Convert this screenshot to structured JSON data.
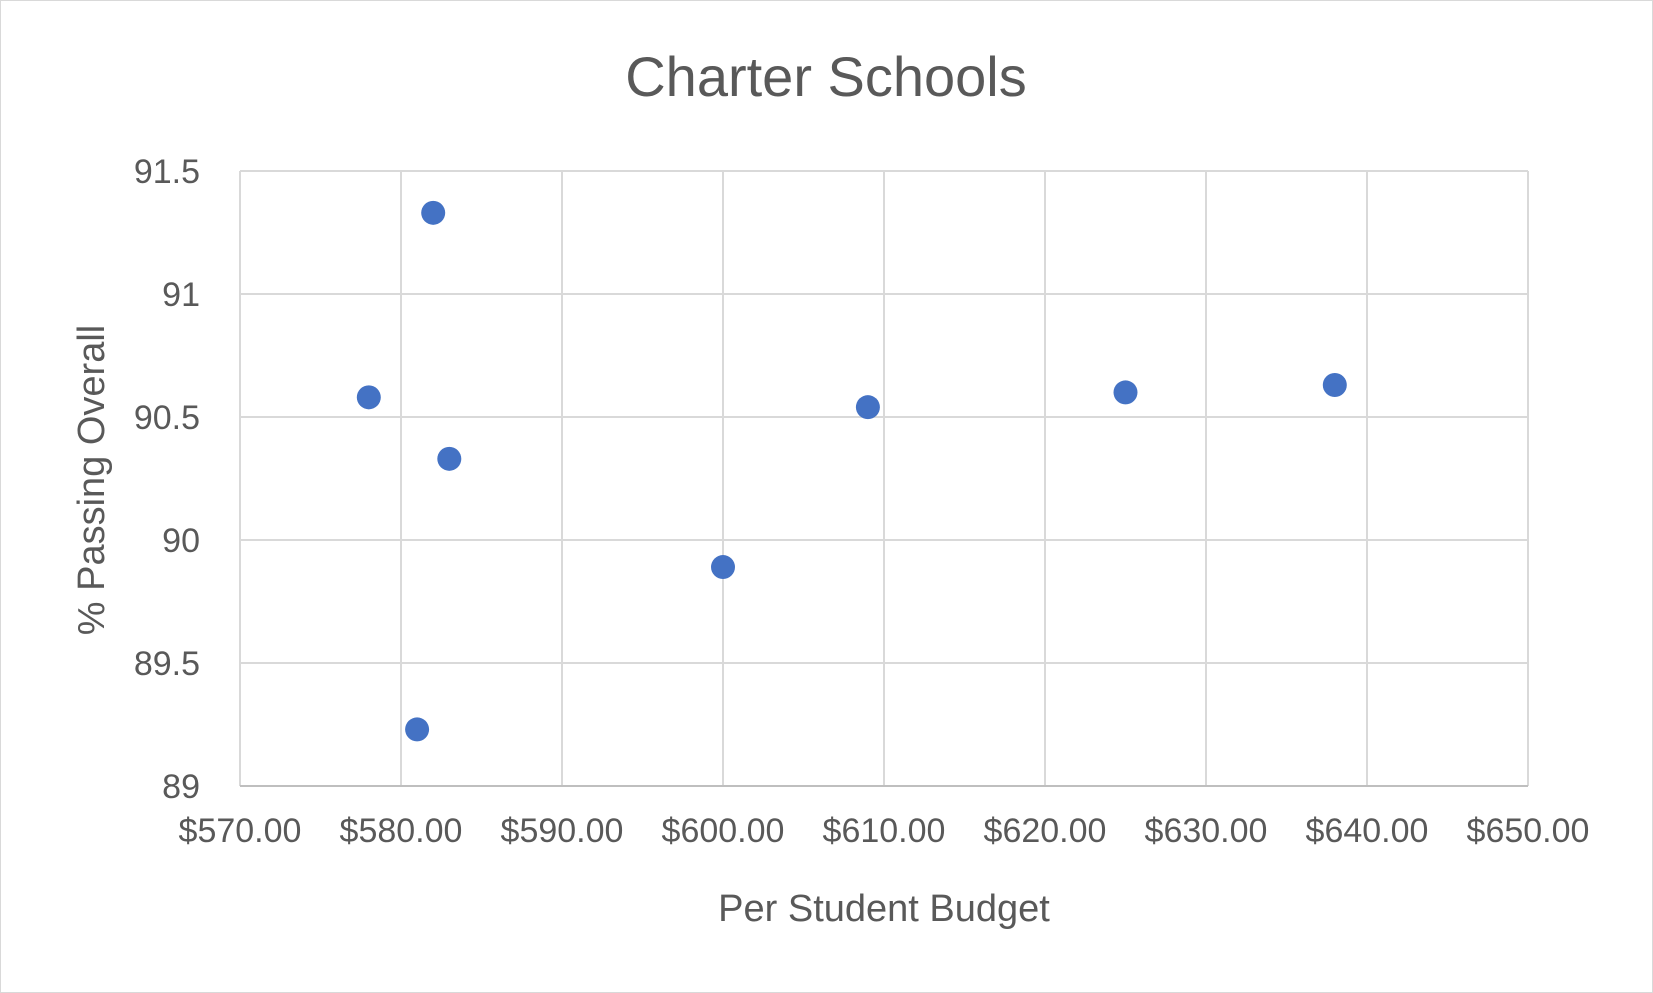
{
  "chart_data": {
    "type": "scatter",
    "title": "Charter Schools",
    "xlabel": "Per Student Budget",
    "ylabel": "% Passing Overall",
    "xlim": [
      570,
      650
    ],
    "ylim": [
      89,
      91.5
    ],
    "x_ticks": [
      "$570.00",
      "$580.00",
      "$590.00",
      "$600.00",
      "$610.00",
      "$620.00",
      "$630.00",
      "$640.00",
      "$650.00"
    ],
    "y_ticks": [
      "89",
      "89.5",
      "90",
      "90.5",
      "91",
      "91.5"
    ],
    "grid": true,
    "legend": "none",
    "marker_color": "#4472c4",
    "points": [
      {
        "x": 578,
        "y": 90.58
      },
      {
        "x": 581,
        "y": 89.23
      },
      {
        "x": 582,
        "y": 91.33
      },
      {
        "x": 583,
        "y": 90.33
      },
      {
        "x": 600,
        "y": 89.89
      },
      {
        "x": 609,
        "y": 90.54
      },
      {
        "x": 625,
        "y": 90.6
      },
      {
        "x": 638,
        "y": 90.63
      }
    ]
  }
}
